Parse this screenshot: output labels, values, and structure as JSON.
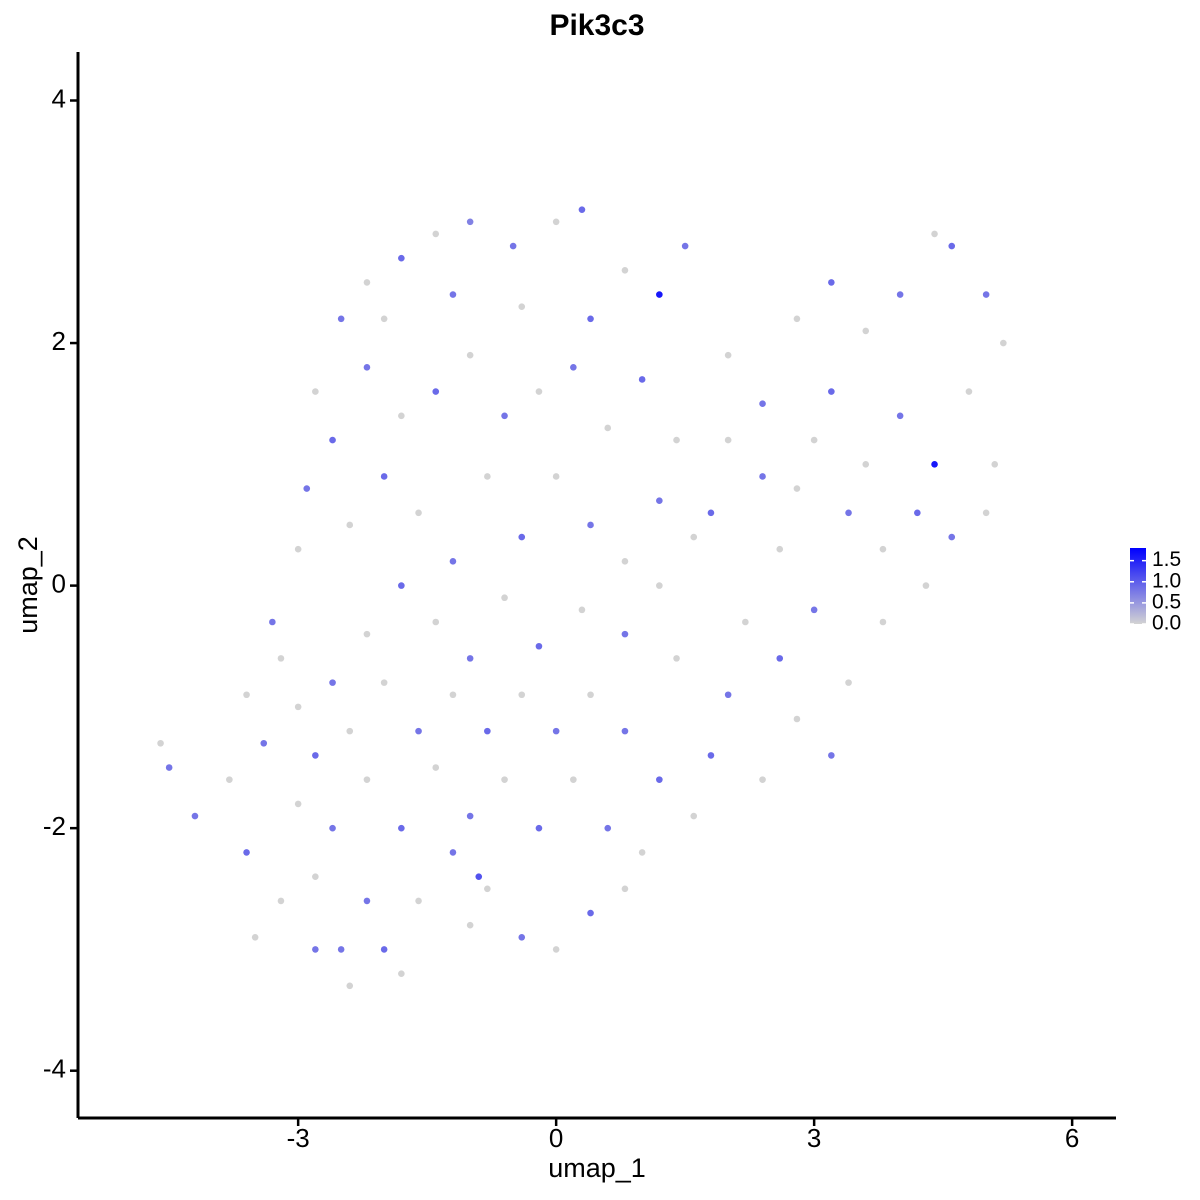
{
  "chart_data": {
    "type": "scatter",
    "title": "Pik3c3",
    "x_label": "umap_1",
    "y_label": "umap_2",
    "x": [
      -2.5,
      -2.2,
      -1.8,
      -1.4,
      -1,
      -0.5,
      0,
      0.3,
      0.8,
      1.2,
      1.5,
      -2.8,
      -2.6,
      -2.2,
      -1.8,
      -1.4,
      -1,
      -0.6,
      -0.2,
      0.2,
      0.6,
      1,
      1.4,
      -2.9,
      -2.4,
      -2,
      -1.6,
      -1.2,
      -0.8,
      -0.4,
      0,
      0.4,
      0.8,
      1.2,
      1.6,
      -2,
      -1.2,
      -0.4,
      0.4,
      -3,
      -3.3,
      2,
      2.4,
      2.8,
      3.2,
      3.6,
      4,
      4.4,
      4.6,
      5,
      5.2,
      4.8,
      4.4,
      4,
      3.6,
      3.2,
      2.8,
      2.4,
      2,
      1.8,
      3,
      3.4,
      3.8,
      4.2,
      4.6,
      5,
      5.1,
      2.6,
      3,
      3.4,
      3.8,
      2.6,
      2.2,
      2,
      2.8,
      3.2,
      2.4,
      1.8,
      1.6,
      4.3,
      1.2,
      0.8,
      0.3,
      -0.2,
      -0.6,
      -1,
      -1.4,
      -1.8,
      -2.2,
      -2.6,
      -3,
      -3.4,
      -3.8,
      -4.2,
      -4.6,
      -4.5,
      -3.6,
      -3.2,
      -2.8,
      -2.4,
      -2,
      -1.6,
      -1.2,
      -0.8,
      -0.4,
      0,
      0.4,
      0.8,
      0.6,
      0.2,
      -0.2,
      -0.6,
      -1,
      -1.4,
      -1.8,
      -2.2,
      -2.6,
      -3,
      -2.8,
      -2.2,
      -1.8,
      -1,
      0.8,
      1.2,
      0.4,
      0,
      -0.4,
      -0.8,
      -1.2,
      -1.6,
      -2,
      -2.4,
      -2.8,
      -3.2,
      -3.6,
      1.4,
      1,
      -0.9,
      -3.5,
      -2.5
    ],
    "y": [
      2.2,
      2.5,
      2.7,
      2.9,
      3,
      2.8,
      3,
      3.1,
      2.6,
      2.4,
      2.8,
      1.6,
      1.2,
      1.8,
      1.4,
      1.6,
      1.9,
      1.4,
      1.6,
      1.8,
      1.3,
      1.7,
      1.2,
      0.8,
      0.5,
      0.9,
      0.6,
      0.2,
      0.9,
      0.4,
      0.9,
      0.5,
      0.2,
      0.7,
      0.4,
      2.2,
      2.4,
      2.3,
      2.2,
      0.3,
      -0.3,
      1.9,
      1.5,
      2.2,
      2.5,
      2.1,
      2.4,
      2.9,
      2.8,
      2.4,
      2,
      1.6,
      1,
      1.4,
      1,
      1.6,
      0.8,
      0.9,
      1.2,
      0.6,
      1.2,
      0.6,
      0.3,
      0.6,
      0.4,
      0.6,
      1,
      0.3,
      -0.2,
      -0.8,
      -0.3,
      -0.6,
      -0.3,
      -0.9,
      -1.1,
      -1.4,
      -1.6,
      -1.4,
      -1.9,
      0,
      0,
      -0.4,
      -0.2,
      -0.5,
      -0.1,
      -0.6,
      -0.3,
      0,
      -0.4,
      -0.8,
      -1,
      -1.3,
      -1.6,
      -1.9,
      -1.3,
      -1.5,
      -2.2,
      -2.6,
      -3,
      -3.3,
      -3,
      -2.6,
      -2.2,
      -2.5,
      -2.9,
      -3,
      -2.7,
      -2.5,
      -2,
      -1.6,
      -2,
      -1.6,
      -1.9,
      -1.5,
      -2,
      -1.6,
      -2,
      -1.8,
      -2.4,
      -2.6,
      -3.2,
      -2.8,
      -1.2,
      -1.6,
      -0.9,
      -1.2,
      -0.9,
      -1.2,
      -0.9,
      -1.2,
      -0.8,
      -1.2,
      -1.4,
      -0.6,
      -0.9,
      -0.6,
      -2.2,
      -2.4,
      -2.9,
      -3
    ],
    "values": [
      0.8,
      0,
      0.9,
      0,
      0.7,
      0.8,
      0,
      0.9,
      0,
      1.6,
      0.8,
      0,
      0.9,
      0.8,
      0,
      0.9,
      0,
      0.8,
      0,
      0.8,
      0,
      0.9,
      0,
      0.8,
      0,
      0.9,
      0,
      0.8,
      0,
      0.9,
      0,
      0.8,
      0,
      0.8,
      0,
      0,
      0.8,
      0,
      0.9,
      0,
      0.8,
      0,
      0.8,
      0,
      0.9,
      0,
      0.8,
      0,
      0.9,
      0.8,
      0,
      0,
      1.6,
      0.8,
      0,
      0.9,
      0,
      0.8,
      0,
      0.9,
      0,
      0.8,
      0,
      0.9,
      0.8,
      0,
      0,
      0,
      0.8,
      0,
      0,
      0.9,
      0,
      0.8,
      0,
      0.8,
      0,
      0.9,
      0,
      0,
      0,
      0.8,
      0,
      0.9,
      0,
      0.8,
      0,
      0.9,
      0,
      0.8,
      0,
      0.8,
      0,
      0.8,
      0,
      0.8,
      0.9,
      0,
      0.8,
      0,
      0.9,
      0,
      0.8,
      0,
      0.8,
      0,
      0.9,
      0,
      0.8,
      0,
      0.9,
      0,
      0.8,
      0,
      0.9,
      0,
      0.8,
      0,
      0,
      0.8,
      0,
      0,
      0.8,
      0.9,
      0,
      0.8,
      0,
      0.9,
      0,
      0.8,
      0,
      0,
      0.9,
      0,
      0,
      0,
      0,
      1.1,
      0,
      0.8
    ],
    "xlim": [
      -5.56,
      6.51
    ],
    "ylim": [
      -4.39,
      4.4
    ],
    "xticks": [
      -3,
      0,
      3,
      6
    ],
    "yticks": [
      -4,
      -2,
      0,
      2,
      4
    ],
    "color_low": "#d3d3d3",
    "color_high": "#0000ff",
    "color_lim": [
      0,
      1.8
    ],
    "color_ticks": [
      {
        "value": 0,
        "label": "0.0"
      },
      0.5,
      {
        "value": 1,
        "label": "1.0"
      },
      1.5
    ]
  }
}
